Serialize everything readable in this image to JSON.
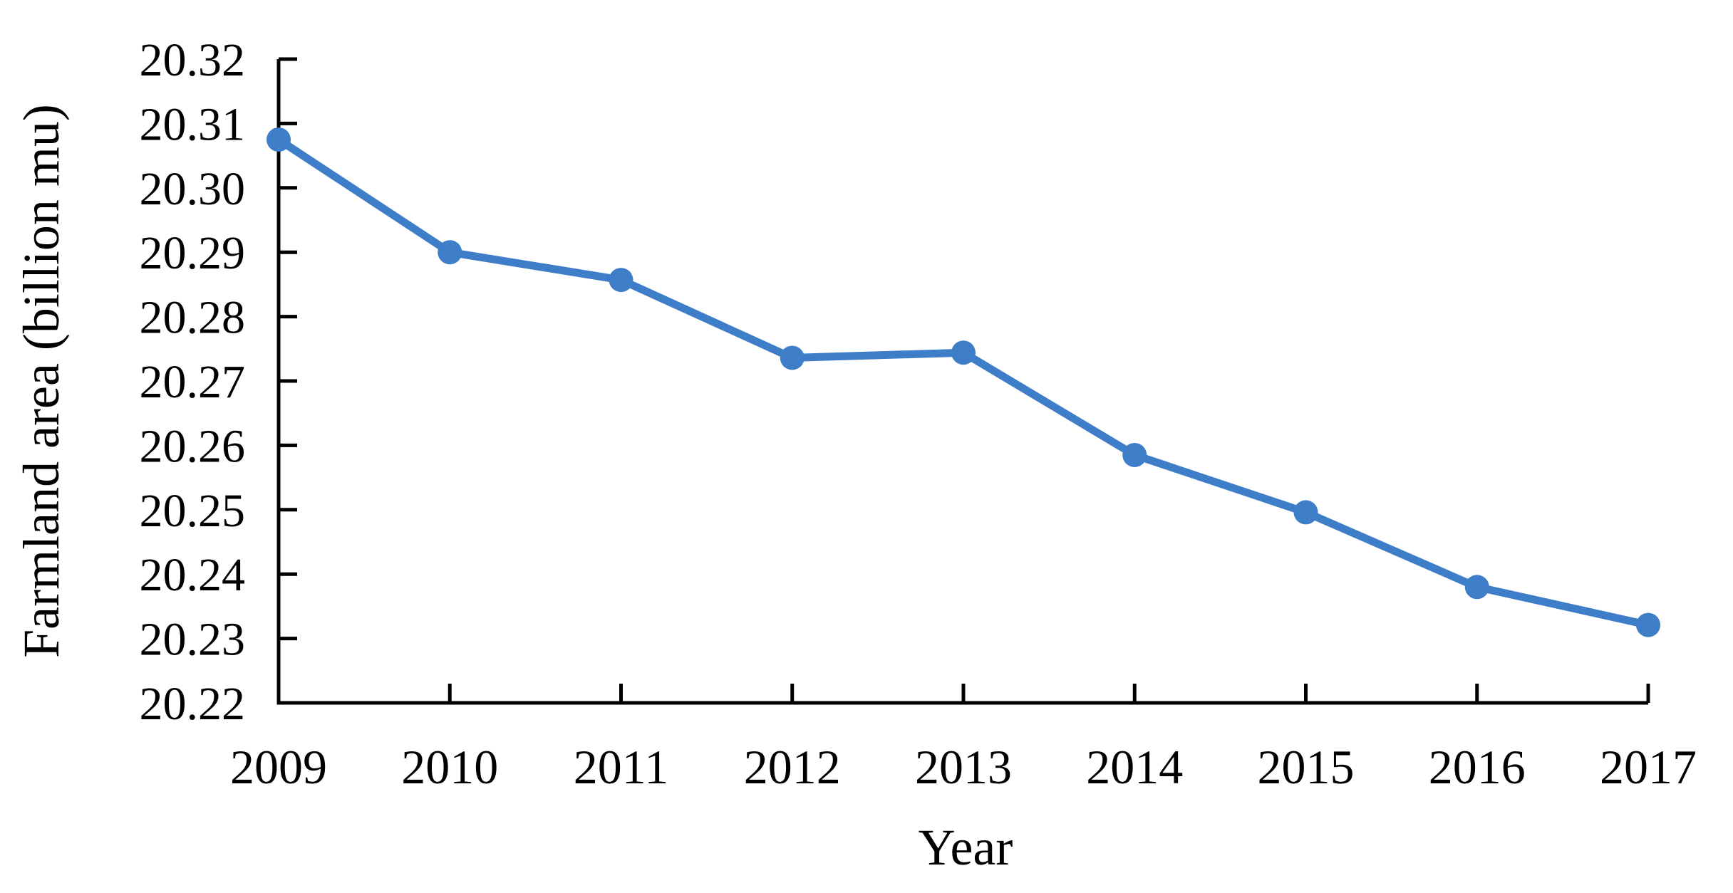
{
  "figure": {
    "background_color": "#ffffff",
    "text_color": "#000000"
  },
  "chart_data": {
    "type": "line",
    "x": [
      2009,
      2010,
      2011,
      2012,
      2013,
      2014,
      2015,
      2016,
      2017
    ],
    "values": [
      20.3075,
      20.29,
      20.2857,
      20.2736,
      20.2744,
      20.2585,
      20.2496,
      20.238,
      20.2321
    ],
    "title": "",
    "xlabel": "Year",
    "ylabel": "Farmland area (billion mu)",
    "ylim": [
      20.22,
      20.32
    ],
    "ytick_step": 0.01,
    "ytick_labels": [
      "20.22",
      "20.23",
      "20.24",
      "20.25",
      "20.26",
      "20.27",
      "20.28",
      "20.29",
      "20.30",
      "20.31",
      "20.32"
    ],
    "xtick_labels": [
      "2009",
      "2010",
      "2011",
      "2012",
      "2013",
      "2014",
      "2015",
      "2016",
      "2017"
    ],
    "grid": "off",
    "legend": "none",
    "marker": "circle",
    "colors": {
      "line": "#3E7DC7",
      "marker": "#3E7DC7",
      "axis": "#000000",
      "text": "#000000"
    }
  }
}
